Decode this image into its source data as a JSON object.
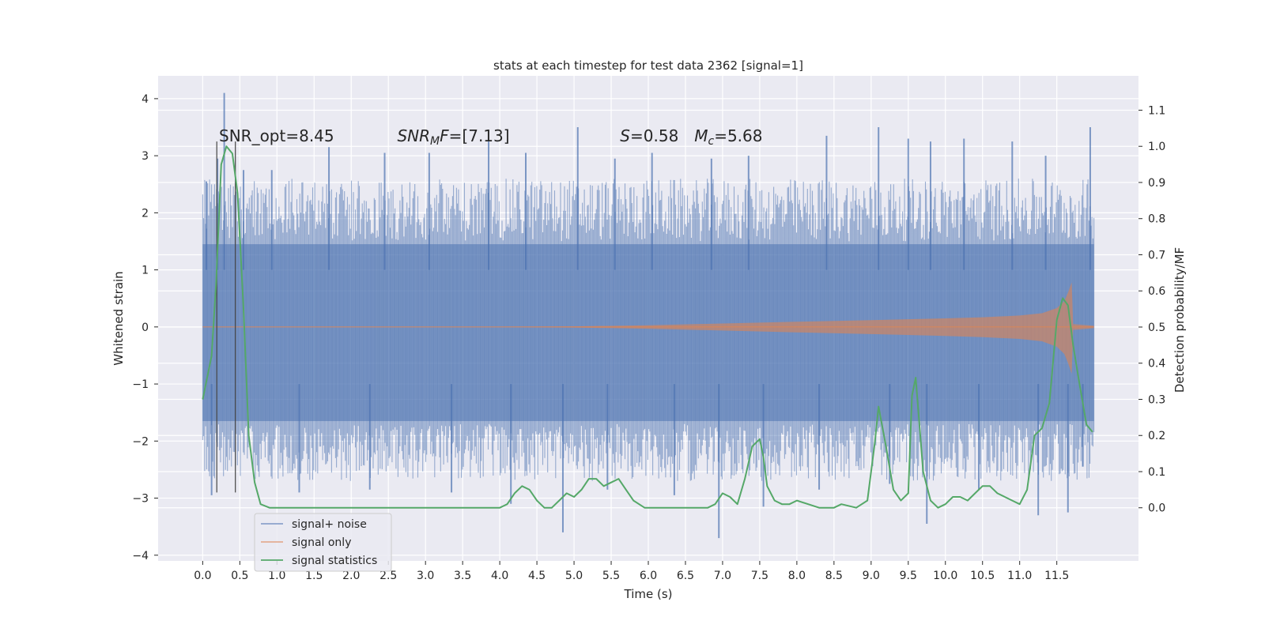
{
  "chart_data": {
    "type": "line",
    "title": "stats at each timestep for test data 2362 [signal=1]",
    "xlabel": "Time (s)",
    "ylabel": "Whitened strain",
    "y2label": "Detection probability/MF",
    "xlim": [
      -0.6,
      12.6
    ],
    "ylim": [
      -4.1,
      4.4
    ],
    "y2lim": [
      -0.147,
      1.195
    ],
    "grid": true,
    "legend_placement": "lower-left",
    "x_ticks": [
      "0.0",
      "0.5",
      "1.0",
      "1.5",
      "2.0",
      "2.5",
      "3.0",
      "3.5",
      "4.0",
      "4.5",
      "5.0",
      "5.5",
      "6.0",
      "6.5",
      "7.0",
      "7.5",
      "8.0",
      "8.5",
      "9.0",
      "9.5",
      "10.0",
      "10.5",
      "11.0",
      "11.5"
    ],
    "y_ticks": [
      "−4",
      "−3",
      "−2",
      "−1",
      "0",
      "1",
      "2",
      "3",
      "4"
    ],
    "y2_ticks": [
      "0.0",
      "0.1",
      "0.2",
      "0.3",
      "0.4",
      "0.5",
      "0.6",
      "0.7",
      "0.8",
      "0.9",
      "1.0",
      "1.1"
    ],
    "annotations": [
      {
        "id": "snr-opt",
        "x": 0.22,
        "y": 3.25,
        "parts": [
          {
            "t": "SNR_opt=8.45"
          }
        ]
      },
      {
        "id": "snr-mf",
        "x": 2.62,
        "y": 3.25,
        "parts": [
          {
            "t": "SNR",
            "i": true
          },
          {
            "t": "M",
            "i": true,
            "sub": true
          },
          {
            "t": "F",
            "i": true
          },
          {
            "t": "=[7.13]"
          }
        ]
      },
      {
        "id": "s-value",
        "x": 5.62,
        "y": 3.25,
        "parts": [
          {
            "t": "S",
            "i": true
          },
          {
            "t": "=0.58"
          }
        ]
      },
      {
        "id": "mc-value",
        "x": 6.62,
        "y": 3.25,
        "parts": [
          {
            "t": "M",
            "i": true
          },
          {
            "t": "c",
            "i": true,
            "sub": true
          },
          {
            "t": "=5.68"
          }
        ]
      }
    ],
    "vlines": [
      {
        "x": 0.19,
        "y_from": -2.9,
        "y_to": 3.25
      },
      {
        "x": 0.44,
        "y_from": -2.9,
        "y_to": 3.25
      }
    ],
    "series": [
      {
        "name": "signal+ noise",
        "color": "#4c72b0",
        "t_range": [
          0.0,
          12.0
        ],
        "core_band": [
          -1.65,
          1.45
        ],
        "spikes": [
          {
            "x": 0.29,
            "y": 4.1
          },
          {
            "x": 0.05,
            "y": 2.55
          },
          {
            "x": 0.2,
            "y": 2.95
          },
          {
            "x": 0.55,
            "y": 2.75
          },
          {
            "x": 0.93,
            "y": 2.75
          },
          {
            "x": 1.7,
            "y": 3.15
          },
          {
            "x": 2.45,
            "y": 3.05
          },
          {
            "x": 3.05,
            "y": 3.05
          },
          {
            "x": 3.85,
            "y": 3.25
          },
          {
            "x": 4.35,
            "y": 3.05
          },
          {
            "x": 5.05,
            "y": 3.5
          },
          {
            "x": 5.55,
            "y": 2.95
          },
          {
            "x": 6.05,
            "y": 3.05
          },
          {
            "x": 6.85,
            "y": 2.95
          },
          {
            "x": 7.35,
            "y": 3.0
          },
          {
            "x": 8.4,
            "y": 3.35
          },
          {
            "x": 9.1,
            "y": 3.5
          },
          {
            "x": 9.5,
            "y": 3.3
          },
          {
            "x": 9.8,
            "y": 3.25
          },
          {
            "x": 10.25,
            "y": 3.3
          },
          {
            "x": 10.9,
            "y": 3.25
          },
          {
            "x": 11.35,
            "y": 3.0
          },
          {
            "x": 11.95,
            "y": 3.5
          },
          {
            "x": 0.12,
            "y": -2.95
          },
          {
            "x": 1.3,
            "y": -2.9
          },
          {
            "x": 2.25,
            "y": -2.85
          },
          {
            "x": 3.35,
            "y": -2.9
          },
          {
            "x": 4.15,
            "y": -3.1
          },
          {
            "x": 4.85,
            "y": -3.6
          },
          {
            "x": 5.45,
            "y": -2.85
          },
          {
            "x": 6.35,
            "y": -2.95
          },
          {
            "x": 6.95,
            "y": -3.7
          },
          {
            "x": 7.55,
            "y": -3.15
          },
          {
            "x": 8.3,
            "y": -2.85
          },
          {
            "x": 9.25,
            "y": -2.75
          },
          {
            "x": 9.75,
            "y": -3.45
          },
          {
            "x": 10.45,
            "y": -2.85
          },
          {
            "x": 11.25,
            "y": -3.3
          },
          {
            "x": 11.65,
            "y": -3.25
          },
          {
            "x": 11.85,
            "y": -2.45
          }
        ]
      },
      {
        "name": "signal only",
        "color": "#dd8452",
        "envelope": {
          "x": [
            0,
            4,
            5,
            6,
            7,
            8,
            9,
            10,
            10.5,
            11,
            11.3,
            11.5,
            11.6,
            11.65,
            11.7,
            11.72,
            12.0
          ],
          "y": [
            0.0,
            0.0,
            0.01,
            0.03,
            0.06,
            0.09,
            0.12,
            0.15,
            0.17,
            0.2,
            0.24,
            0.33,
            0.45,
            0.6,
            0.78,
            0.05,
            0.02
          ]
        }
      },
      {
        "name": "signal statistics",
        "color": "#55a868",
        "axis": "right",
        "x": [
          0.0,
          0.12,
          0.18,
          0.25,
          0.32,
          0.4,
          0.47,
          0.55,
          0.62,
          0.7,
          0.78,
          0.9,
          1.5,
          2.0,
          2.5,
          3.0,
          3.5,
          4.0,
          4.1,
          4.2,
          4.3,
          4.4,
          4.5,
          4.6,
          4.7,
          4.8,
          4.9,
          5.0,
          5.1,
          5.2,
          5.3,
          5.4,
          5.5,
          5.6,
          5.7,
          5.8,
          5.95,
          6.2,
          6.5,
          6.8,
          6.9,
          7.0,
          7.1,
          7.2,
          7.3,
          7.4,
          7.5,
          7.55,
          7.6,
          7.7,
          7.8,
          7.9,
          8.0,
          8.3,
          8.5,
          8.6,
          8.8,
          8.95,
          9.05,
          9.1,
          9.2,
          9.3,
          9.4,
          9.5,
          9.55,
          9.6,
          9.7,
          9.8,
          9.9,
          10.0,
          10.1,
          10.2,
          10.3,
          10.4,
          10.5,
          10.6,
          10.7,
          10.8,
          10.9,
          11.0,
          11.1,
          11.2,
          11.3,
          11.4,
          11.5,
          11.58,
          11.65,
          11.72,
          11.8,
          11.9,
          11.98
        ],
        "y": [
          0.3,
          0.42,
          0.62,
          0.95,
          1.0,
          0.98,
          0.87,
          0.55,
          0.2,
          0.07,
          0.01,
          0.0,
          0.0,
          0.0,
          0.0,
          0.0,
          0.0,
          0.0,
          0.01,
          0.04,
          0.06,
          0.05,
          0.02,
          0.0,
          0.0,
          0.02,
          0.04,
          0.03,
          0.05,
          0.08,
          0.08,
          0.06,
          0.07,
          0.08,
          0.05,
          0.02,
          0.0,
          0.0,
          0.0,
          0.0,
          0.01,
          0.04,
          0.03,
          0.01,
          0.08,
          0.17,
          0.19,
          0.14,
          0.06,
          0.02,
          0.01,
          0.01,
          0.02,
          0.0,
          0.0,
          0.01,
          0.0,
          0.02,
          0.18,
          0.28,
          0.17,
          0.05,
          0.02,
          0.04,
          0.31,
          0.36,
          0.1,
          0.02,
          0.0,
          0.01,
          0.03,
          0.03,
          0.02,
          0.04,
          0.06,
          0.06,
          0.04,
          0.03,
          0.02,
          0.01,
          0.05,
          0.2,
          0.22,
          0.29,
          0.52,
          0.58,
          0.56,
          0.45,
          0.35,
          0.23,
          0.21
        ]
      }
    ]
  }
}
